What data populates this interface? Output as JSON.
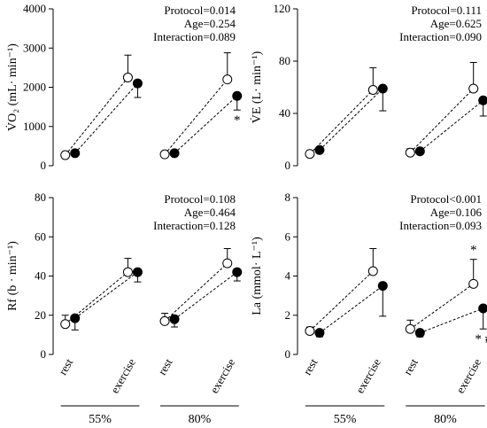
{
  "chart_data": [
    {
      "type": "dot-error",
      "ylabel": "V̇O₂ (mL· min⁻¹)",
      "ylim": [
        0,
        4000
      ],
      "yticks": [
        0,
        1000,
        2000,
        3000,
        4000
      ],
      "stats": [
        "Protocol=0.014",
        "Age=0.254",
        "Interaction=0.089"
      ],
      "series": [
        {
          "color": "#ffffff",
          "error_direction": "up",
          "values": [
            270,
            2250,
            290,
            2200
          ],
          "errors": [
            50,
            570,
            60,
            680
          ]
        },
        {
          "color": "#000000",
          "error_direction": "down",
          "values": [
            320,
            2100,
            320,
            1780
          ],
          "errors": [
            40,
            360,
            40,
            360
          ]
        }
      ],
      "annotations": [
        {
          "text": "*",
          "series": 1,
          "index": 3,
          "position": "below"
        }
      ]
    },
    {
      "type": "dot-error",
      "ylabel": "V̇E (L· min⁻¹)",
      "ylim": [
        0,
        120
      ],
      "yticks": [
        0,
        40,
        80,
        120
      ],
      "stats": [
        "Protocol=0.111",
        "Age=0.625",
        "Interaction=0.090"
      ],
      "series": [
        {
          "color": "#ffffff",
          "error_direction": "up",
          "values": [
            9,
            58,
            10,
            59
          ],
          "errors": [
            1,
            17,
            3,
            20
          ]
        },
        {
          "color": "#000000",
          "error_direction": "down",
          "values": [
            12,
            59,
            11,
            50
          ],
          "errors": [
            1,
            17,
            1,
            12
          ]
        }
      ],
      "annotations": []
    },
    {
      "type": "dot-error",
      "ylabel": "Rf (b · min⁻¹)",
      "ylim": [
        0,
        80
      ],
      "yticks": [
        0,
        20,
        40,
        60,
        80
      ],
      "stats": [
        "Protocol=0.108",
        "Age=0.464",
        "Interaction=0.128"
      ],
      "categories": [
        "rest",
        "exercise",
        "rest",
        "exercise"
      ],
      "groups": [
        "55%",
        "80%"
      ],
      "series": [
        {
          "color": "#ffffff",
          "error_direction": "up",
          "values": [
            15.5,
            42,
            17,
            46.5
          ],
          "errors": [
            4.5,
            7,
            4,
            7.5
          ]
        },
        {
          "color": "#000000",
          "error_direction": "down",
          "values": [
            18.5,
            42,
            18,
            42
          ],
          "errors": [
            6,
            5,
            4,
            4.5
          ]
        }
      ],
      "annotations": []
    },
    {
      "type": "dot-error",
      "ylabel": "La (mmol· L⁻¹)",
      "ylim": [
        0,
        8
      ],
      "yticks": [
        0,
        2,
        4,
        6,
        8
      ],
      "stats": [
        "Protocol<0.001",
        "Age=0.106",
        "Interaction=0.093"
      ],
      "categories": [
        "rest",
        "exercise",
        "rest",
        "exercise"
      ],
      "groups": [
        "55%",
        "80%"
      ],
      "series": [
        {
          "color": "#ffffff",
          "error_direction": "up",
          "values": [
            1.2,
            4.25,
            1.3,
            3.6
          ],
          "errors": [
            0.2,
            1.15,
            0.45,
            1.25
          ]
        },
        {
          "color": "#000000",
          "error_direction": "down",
          "values": [
            1.1,
            3.5,
            1.1,
            2.35
          ],
          "errors": [
            0.2,
            1.55,
            0.2,
            1.05
          ]
        }
      ],
      "annotations": [
        {
          "text": "*",
          "series": 0,
          "index": 3,
          "position": "above"
        },
        {
          "text": "* #",
          "series": 1,
          "index": 3,
          "position": "below"
        }
      ]
    }
  ]
}
